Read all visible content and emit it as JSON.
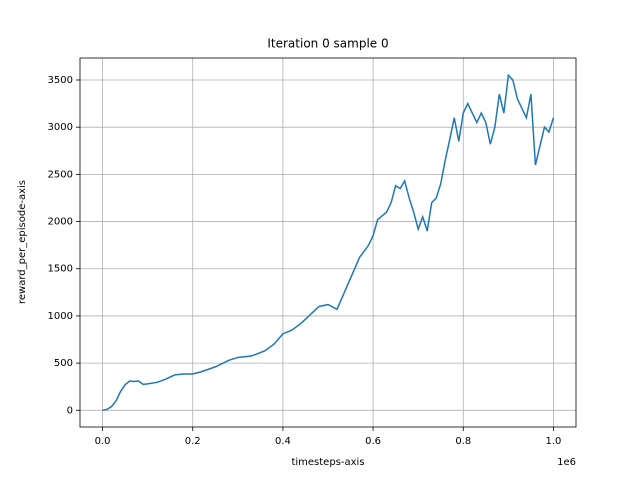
{
  "chart_data": {
    "type": "line",
    "title": "Iteration 0 sample 0",
    "x_label": "timesteps-axis",
    "y_label": "reward_per_episode-axis",
    "x_offset_label": "1e6",
    "x": [
      0,
      0.01,
      0.02,
      0.03,
      0.04,
      0.05,
      0.06,
      0.07,
      0.08,
      0.09,
      0.1,
      0.12,
      0.14,
      0.16,
      0.18,
      0.2,
      0.22,
      0.25,
      0.28,
      0.3,
      0.33,
      0.36,
      0.38,
      0.4,
      0.42,
      0.44,
      0.46,
      0.48,
      0.5,
      0.52,
      0.53,
      0.55,
      0.57,
      0.59,
      0.6,
      0.61,
      0.63,
      0.64,
      0.65,
      0.66,
      0.67,
      0.68,
      0.69,
      0.7,
      0.71,
      0.72,
      0.73,
      0.74,
      0.75,
      0.76,
      0.77,
      0.78,
      0.79,
      0.8,
      0.81,
      0.82,
      0.83,
      0.84,
      0.85,
      0.86,
      0.87,
      0.88,
      0.89,
      0.9,
      0.91,
      0.92,
      0.93,
      0.94,
      0.95,
      0.96,
      0.97,
      0.98,
      0.99,
      1.0
    ],
    "series": [
      {
        "color": "#1f77b4",
        "values": [
          0,
          10,
          40,
          100,
          200,
          270,
          310,
          305,
          310,
          275,
          280,
          295,
          330,
          375,
          385,
          385,
          410,
          460,
          530,
          560,
          575,
          630,
          700,
          810,
          850,
          920,
          1010,
          1100,
          1120,
          1070,
          1180,
          1400,
          1620,
          1750,
          1850,
          2020,
          2100,
          2200,
          2380,
          2350,
          2430,
          2250,
          2100,
          1920,
          2050,
          1900,
          2200,
          2250,
          2400,
          2650,
          2870,
          3100,
          2850,
          3150,
          3250,
          3150,
          3050,
          3150,
          3050,
          2820,
          3000,
          3350,
          3150,
          3550,
          3500,
          3300,
          3200,
          3100,
          3350,
          2600,
          2800,
          3000,
          2950,
          3100
        ]
      }
    ],
    "xlim": [
      -0.05,
      1.05
    ],
    "ylim": [
      -177,
      3733
    ],
    "xticks": [
      {
        "value": 0,
        "label": "0.0"
      },
      0.2,
      0.4,
      0.6,
      0.8,
      {
        "value": 1,
        "label": "1.0"
      }
    ],
    "yticks": [
      0,
      500,
      1000,
      1500,
      2000,
      2500,
      3000,
      3500
    ],
    "grid": true
  }
}
